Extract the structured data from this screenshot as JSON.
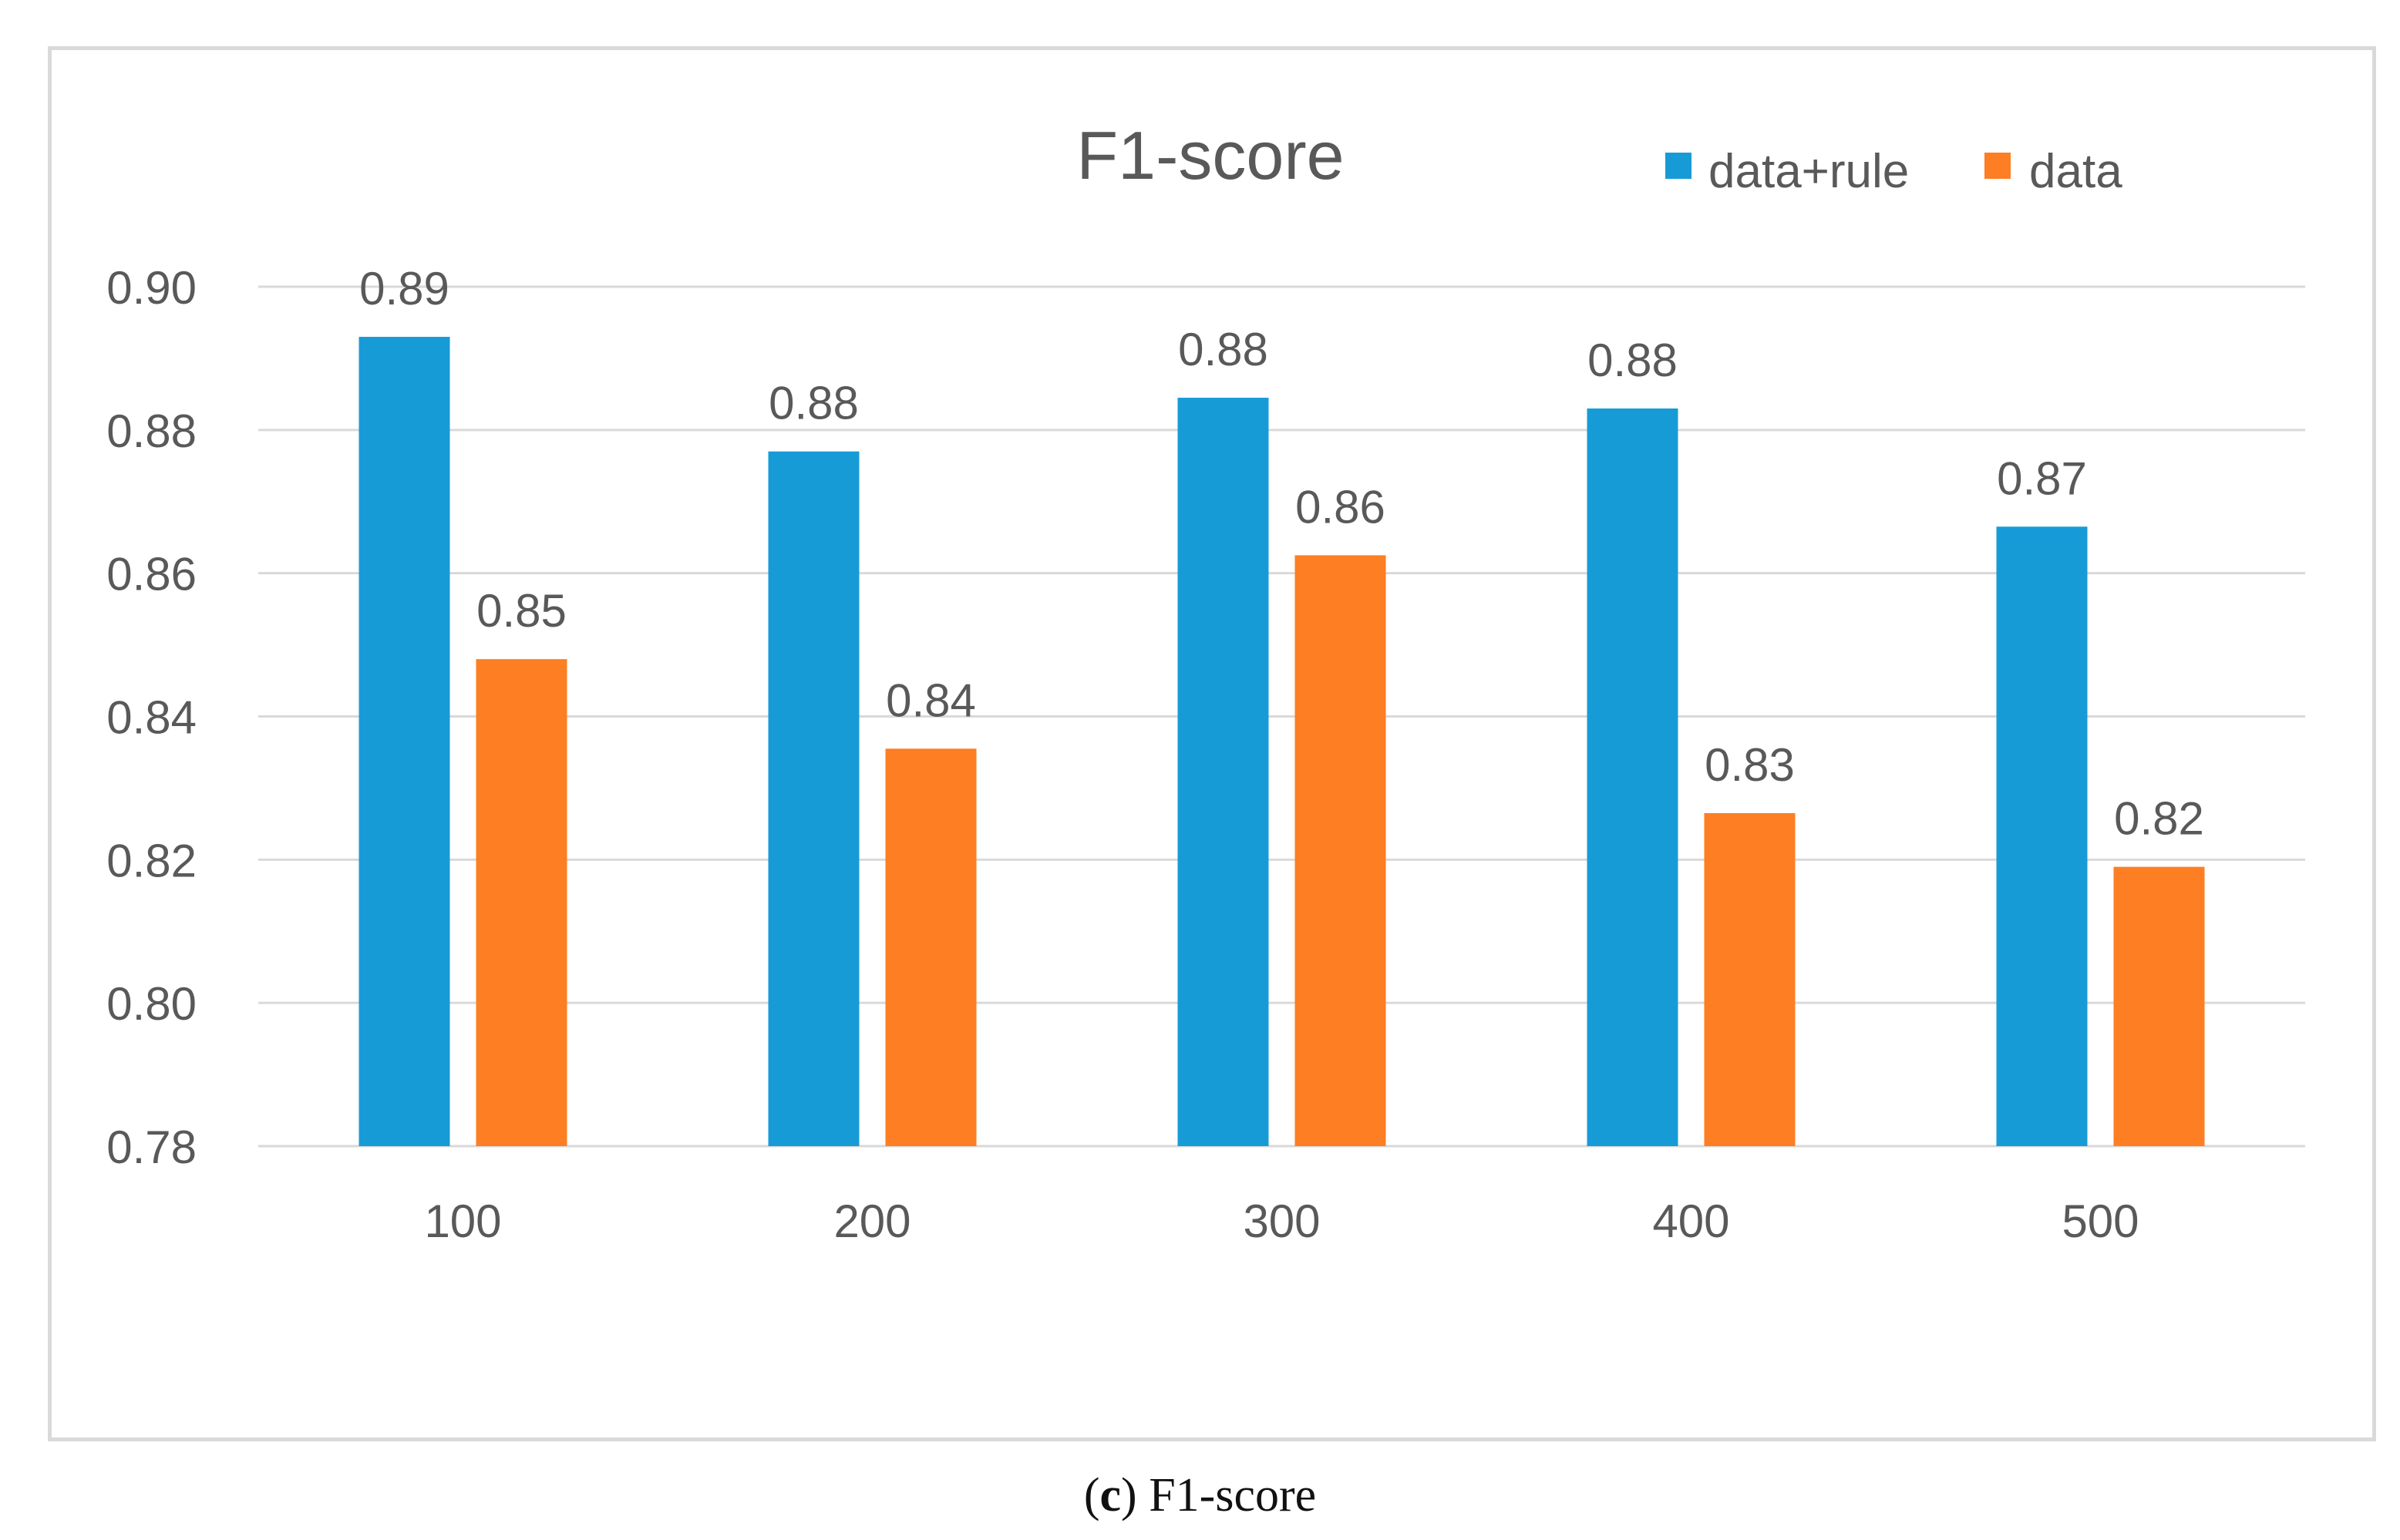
{
  "caption": {
    "open_paren": "(",
    "letter": "c",
    "close_paren": ")",
    "text": " F1-score"
  },
  "chart_data": {
    "type": "bar",
    "title": "F1-score",
    "xlabel": "",
    "ylabel": "",
    "categories": [
      "100",
      "200",
      "300",
      "400",
      "500"
    ],
    "series": [
      {
        "name": "data+rule",
        "color": "#179bd7",
        "values": [
          0.893,
          0.877,
          0.8845,
          0.883,
          0.8665
        ],
        "labels": [
          "0.89",
          "0.88",
          "0.88",
          "0.88",
          "0.87"
        ]
      },
      {
        "name": "data",
        "color": "#fd7e23",
        "values": [
          0.848,
          0.8355,
          0.8625,
          0.8265,
          0.819
        ],
        "labels": [
          "0.85",
          "0.84",
          "0.86",
          "0.83",
          "0.82"
        ]
      }
    ],
    "ylim": [
      0.78,
      0.9
    ],
    "yticks": [
      "0.90",
      "0.88",
      "0.86",
      "0.84",
      "0.82",
      "0.80",
      "0.78"
    ],
    "grid": true,
    "legend_position": "top-right"
  }
}
